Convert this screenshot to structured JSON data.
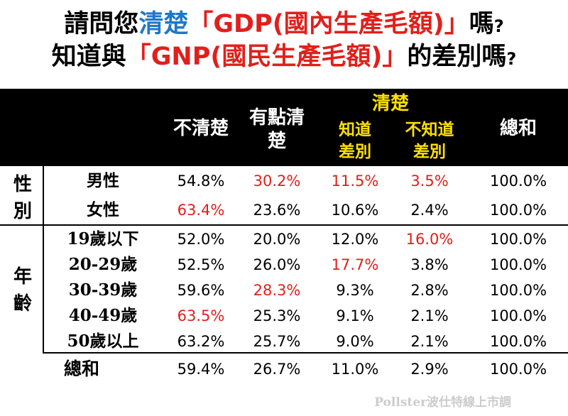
{
  "title": {
    "line1": {
      "a": "請問您",
      "b": "清楚",
      "c": "「GDP(國內生產毛額)」",
      "d": "嗎",
      "q": "?"
    },
    "line2": {
      "a": "知道與",
      "b": "「GNP(國民生產毛額)」",
      "c": "的差別嗎",
      "q": "?"
    }
  },
  "header": {
    "col1": "不清楚",
    "col2a": "有點清",
    "col2b": "楚",
    "group": "清楚",
    "col3a": "知道",
    "col3b": "差別",
    "col4a": "不知道",
    "col4b": "差別",
    "col5": "總和"
  },
  "groups": {
    "gender": {
      "a": "性",
      "b": "別"
    },
    "age": {
      "a": "年",
      "b": "齡"
    }
  },
  "rows": [
    {
      "label": "男性",
      "v1": "54.8%",
      "v2": "30.2%",
      "v3": "11.5%",
      "v4": "3.5%",
      "v5": "100.0%"
    },
    {
      "label": "女性",
      "v1": "63.4%",
      "v2": "23.6%",
      "v3": "10.6%",
      "v4": "2.4%",
      "v5": "100.0%"
    },
    {
      "label": "19歲以下",
      "v1": "52.0%",
      "v2": "20.0%",
      "v3": "12.0%",
      "v4": "16.0%",
      "v5": "100.0%"
    },
    {
      "label": "20-29歲",
      "v1": "52.5%",
      "v2": "26.0%",
      "v3": "17.7%",
      "v4": "3.8%",
      "v5": "100.0%"
    },
    {
      "label": "30-39歲",
      "v1": "59.6%",
      "v2": "28.3%",
      "v3": "9.3%",
      "v4": "2.8%",
      "v5": "100.0%"
    },
    {
      "label": "40-49歲",
      "v1": "63.5%",
      "v2": "25.3%",
      "v3": "9.1%",
      "v4": "2.1%",
      "v5": "100.0%"
    },
    {
      "label": "50歲以上",
      "v1": "63.2%",
      "v2": "25.7%",
      "v3": "9.0%",
      "v4": "2.1%",
      "v5": "100.0%"
    },
    {
      "label": "總和",
      "v1": "59.4%",
      "v2": "26.7%",
      "v3": "11.0%",
      "v4": "2.9%",
      "v5": "100.0%"
    }
  ],
  "highlight_color": "#e0201c",
  "accent_blue": "#1e78c8",
  "header_yellow": "#ffe000",
  "watermark": "Pollster波仕特線上市調"
}
